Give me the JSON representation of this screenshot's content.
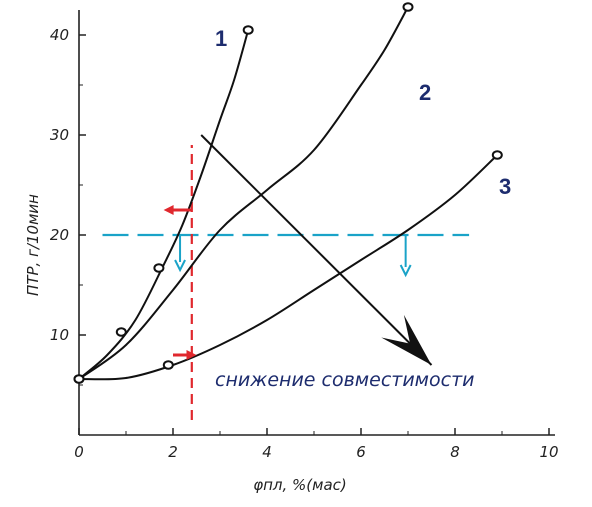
{
  "chart_data": {
    "type": "line",
    "title": "",
    "xlabel": "φпл, %(мас)",
    "ylabel": "ПТР, г/10мин",
    "xlim": [
      0,
      10
    ],
    "ylim": [
      0,
      44
    ],
    "x_ticks": [
      0,
      2,
      4,
      6,
      8,
      10
    ],
    "y_ticks": [
      10,
      20,
      30,
      40
    ],
    "series": [
      {
        "name": "1",
        "color": "#111111",
        "x": [
          0,
          0.6,
          1.2,
          1.8,
          2.2,
          2.6,
          3.0,
          3.3,
          3.6
        ],
        "y": [
          5.6,
          8.0,
          11.5,
          17.0,
          21.0,
          26.0,
          31.5,
          35.5,
          40.5
        ],
        "markers": [
          {
            "x": 0,
            "y": 5.6
          },
          {
            "x": 0.9,
            "y": 10.3
          },
          {
            "x": 1.7,
            "y": 16.7
          },
          {
            "x": 3.6,
            "y": 40.5
          }
        ]
      },
      {
        "name": "2",
        "color": "#111111",
        "x": [
          0,
          1.0,
          2.0,
          3.0,
          4.0,
          5.0,
          6.0,
          6.5,
          7.0
        ],
        "y": [
          5.6,
          9.0,
          14.5,
          20.5,
          24.5,
          28.5,
          35.0,
          38.5,
          42.8
        ],
        "markers": [
          {
            "x": 7.0,
            "y": 42.8
          }
        ]
      },
      {
        "name": "3",
        "color": "#111111",
        "x": [
          0,
          1.0,
          2.0,
          3.0,
          4.0,
          5.0,
          6.0,
          7.0,
          8.0,
          8.9
        ],
        "y": [
          5.6,
          5.7,
          7.0,
          9.0,
          11.5,
          14.5,
          17.5,
          20.5,
          24.0,
          28.0
        ],
        "markers": [
          {
            "x": 0,
            "y": 5.6
          },
          {
            "x": 1.9,
            "y": 7.0
          },
          {
            "x": 8.9,
            "y": 28.0
          }
        ]
      }
    ],
    "annotations": {
      "horizontal_line_y": 20,
      "horizontal_line_x_range": [
        0.5,
        8.3
      ],
      "horizontal_line_color": "#1aa3c8",
      "vertical_line_x": 2.4,
      "vertical_line_y_range": [
        1.5,
        29
      ],
      "vertical_line_color": "#e0282e",
      "red_arrows": [
        {
          "x_from": 2.4,
          "x_to": 1.8,
          "y": 22.5
        },
        {
          "x_from": 2.0,
          "x_to": 2.5,
          "y": 8.0
        }
      ],
      "blue_arrows": [
        {
          "x": 2.15,
          "y_from": 20,
          "y_to": 16.5
        },
        {
          "x": 6.95,
          "y_from": 20,
          "y_to": 16.0
        }
      ],
      "trend_arrow": {
        "x_from": 2.6,
        "y_from": 30,
        "x_to": 7.5,
        "y_to": 7.0
      },
      "trend_label": "снижение совместимости",
      "trend_label_color": "#1d2c6e"
    }
  }
}
